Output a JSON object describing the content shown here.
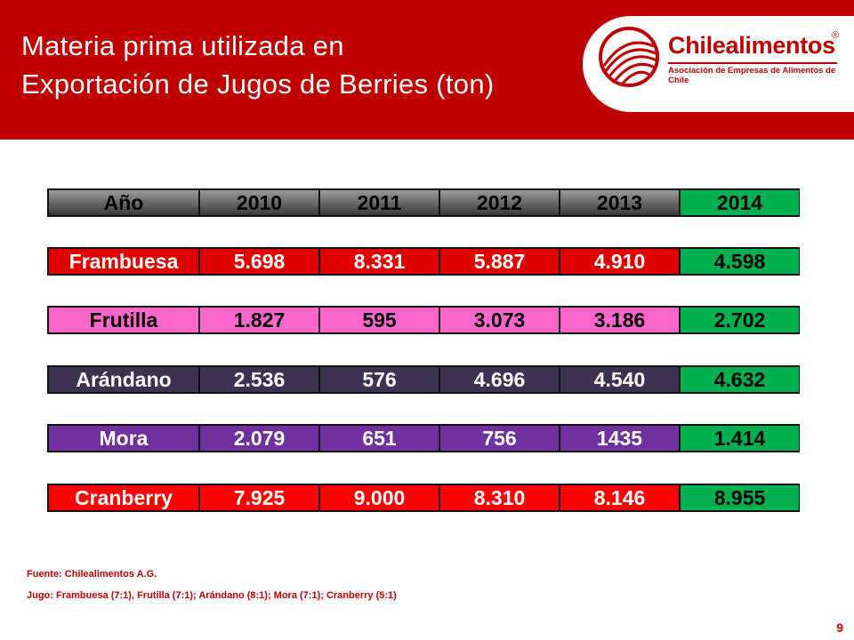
{
  "header": {
    "title_line1": "Materia prima utilizada en",
    "title_line2": "Exportación de Jugos de Berries (ton)",
    "color": "#c00000"
  },
  "logo": {
    "name": "Chilealimentos",
    "registered": "®",
    "subtitle": "Asociación de Empresas de Alimentos de Chile"
  },
  "table": {
    "header": {
      "label": "Año",
      "years": [
        "2010",
        "2011",
        "2012",
        "2013",
        "2014"
      ]
    },
    "rows": [
      {
        "label": "Frambuesa",
        "values": [
          "5.698",
          "8.331",
          "5.887",
          "4.910",
          "4.598"
        ],
        "color": "#e00000"
      },
      {
        "label": "Frutilla",
        "values": [
          "1.827",
          "595",
          "3.073",
          "3.186",
          "2.702"
        ],
        "color": "#ff66cc"
      },
      {
        "label": "Arándano",
        "values": [
          "2.536",
          "576",
          "4.696",
          "4.540",
          "4.632"
        ],
        "color": "#3f3151"
      },
      {
        "label": "Mora",
        "values": [
          "2.079",
          "651",
          "756",
          "1435",
          "1.414"
        ],
        "color": "#7030a0"
      },
      {
        "label": "Cranberry",
        "values": [
          "7.925",
          "9.000",
          "8.310",
          "8.146",
          "8.955"
        ],
        "color": "#ff0000"
      }
    ],
    "highlight_color": "#00b050"
  },
  "footer": {
    "source": "Fuente: Chilealimentos A.G.",
    "note": "Jugo: Frambuesa (7:1), Frutilla (7:1); Arándano (8:1); Mora (7:1); Cranberry  (5:1)"
  },
  "page_number": "9"
}
